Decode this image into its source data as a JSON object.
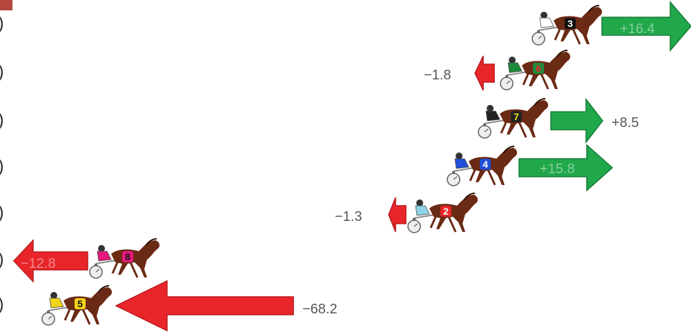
{
  "legend_marks": [
    ")",
    ")",
    ")",
    ")",
    ")",
    ")",
    ")"
  ],
  "colors": {
    "gain": "#21a84b",
    "loss": "#e8262a",
    "horse": "#6b2a14",
    "corner": "#b5473e"
  },
  "runners": [
    {
      "number": "3",
      "change": "+16.4",
      "direction": "gain",
      "silks": "#ffffff",
      "cloth": "#111111",
      "cloth_text": "#ffffff",
      "label_inside": true
    },
    {
      "number": "6",
      "change": "−1.8",
      "direction": "loss",
      "silks": "#1e8a3a",
      "cloth": "#1e8a3a",
      "cloth_text": "#e8262a",
      "label_inside": false
    },
    {
      "number": "7",
      "change": "+8.5",
      "direction": "gain",
      "silks": "#222222",
      "cloth": "#222222",
      "cloth_text": "#f6e21a",
      "label_inside": false
    },
    {
      "number": "4",
      "change": "+15.8",
      "direction": "gain",
      "silks": "#1f4fd8",
      "cloth": "#1f4fd8",
      "cloth_text": "#ffffff",
      "label_inside": true
    },
    {
      "number": "2",
      "change": "−1.3",
      "direction": "loss",
      "silks": "#8fd3e8",
      "cloth": "#e8262a",
      "cloth_text": "#ffffff",
      "label_inside": false
    },
    {
      "number": "8",
      "change": "−12.8",
      "direction": "loss",
      "silks": "#e6187e",
      "cloth": "#e6187e",
      "cloth_text": "#111111",
      "label_inside": true
    },
    {
      "number": "5",
      "change": "−68.2",
      "direction": "loss",
      "silks": "#f3d21a",
      "cloth": "#f3d21a",
      "cloth_text": "#111111",
      "label_inside": false
    }
  ]
}
